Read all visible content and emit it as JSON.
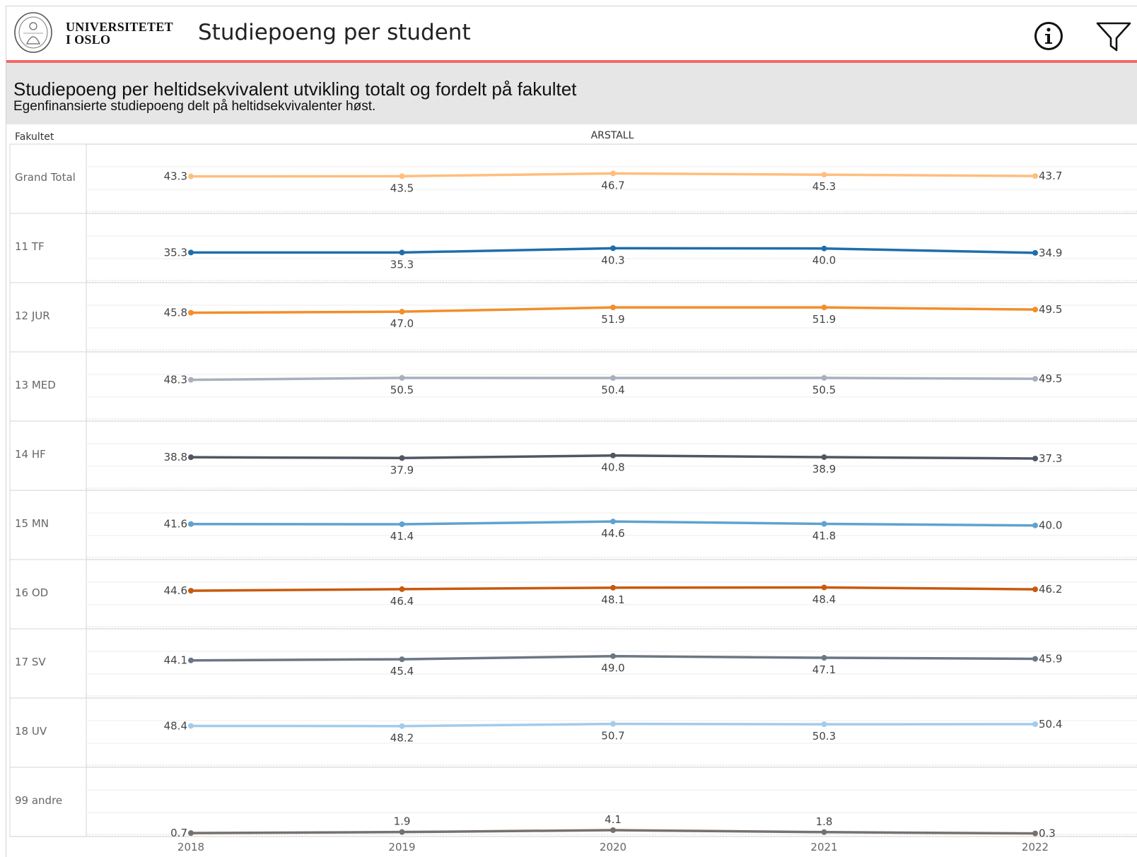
{
  "header": {
    "university_line1": "UNIVERSITETET",
    "university_line2": "I OSLO",
    "title": "Studiepoeng per student",
    "info_icon": "info-circle-icon",
    "filter_icon": "filter-funnel-icon"
  },
  "colors": {
    "header_rule": "#f06a6a",
    "subheader_bg": "#e6e6e6"
  },
  "chart_data": {
    "type": "line",
    "title": "Studiepoeng per heltidsekvivalent utvikling totalt og fordelt på fakultet",
    "subtitle": "Egenfinansierte studiepoeng delt på heltidsekvivalenter høst.",
    "row_header": "Fakultet",
    "column_header": "ARSTALL",
    "x": [
      "2018",
      "2019",
      "2020",
      "2021",
      "2022"
    ],
    "grid": true,
    "series": [
      {
        "name": "Grand Total",
        "color": "#ffbe7d",
        "values": [
          43.3,
          43.5,
          46.7,
          45.3,
          43.7
        ]
      },
      {
        "name": "11 TF",
        "color": "#1f6eaa",
        "values": [
          35.3,
          35.3,
          40.3,
          40.0,
          34.9
        ]
      },
      {
        "name": "12 JUR",
        "color": "#f28e2b",
        "values": [
          45.8,
          47.0,
          51.9,
          51.9,
          49.5
        ]
      },
      {
        "name": "13 MED",
        "color": "#a7b0bc",
        "values": [
          48.3,
          50.5,
          50.4,
          50.5,
          49.5
        ]
      },
      {
        "name": "14 HF",
        "color": "#4f5763",
        "values": [
          38.8,
          37.9,
          40.8,
          38.9,
          37.3
        ]
      },
      {
        "name": "15 MN",
        "color": "#5fa2d0",
        "values": [
          41.6,
          41.4,
          44.6,
          41.8,
          40.0
        ]
      },
      {
        "name": "16 OD",
        "color": "#c85a0e",
        "values": [
          44.6,
          46.4,
          48.1,
          48.4,
          46.2
        ]
      },
      {
        "name": "17 SV",
        "color": "#6b7784",
        "values": [
          44.1,
          45.4,
          49.0,
          47.1,
          45.9
        ]
      },
      {
        "name": "18 UV",
        "color": "#a3cbeb",
        "values": [
          48.4,
          48.2,
          50.7,
          50.3,
          50.4
        ]
      },
      {
        "name": "99 andre",
        "color": "#77716d",
        "values": [
          0.7,
          1.9,
          4.1,
          1.8,
          0.3
        ]
      }
    ]
  }
}
